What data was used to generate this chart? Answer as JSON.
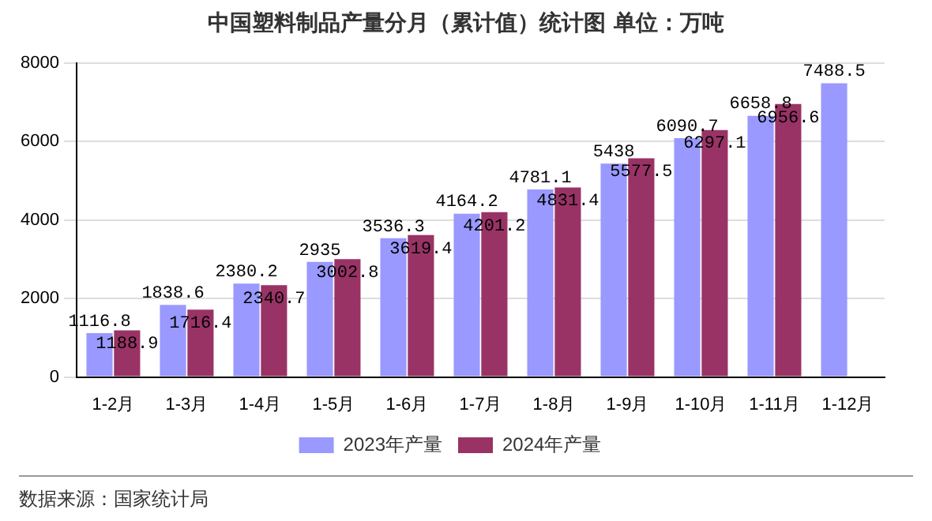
{
  "chart_data": {
    "type": "bar",
    "title": "中国塑料制品产量分月（累计值）统计图 单位：万吨",
    "categories": [
      "1-2月",
      "1-3月",
      "1-4月",
      "1-5月",
      "1-6月",
      "1-7月",
      "1-8月",
      "1-9月",
      "1-10月",
      "1-11月",
      "1-12月"
    ],
    "series": [
      {
        "name": "2023年产量",
        "color": "#9999ff",
        "values": [
          1116.8,
          1838.6,
          2380.2,
          2935,
          3536.3,
          4164.2,
          4781.1,
          5438,
          6090.7,
          6658.8,
          7488.5
        ]
      },
      {
        "name": "2024年产量",
        "color": "#993366",
        "values": [
          1188.9,
          1716.4,
          2340.7,
          3002.8,
          3619.4,
          4201.2,
          4831.4,
          5577.5,
          6297.1,
          6956.6,
          null
        ]
      }
    ],
    "ylim": [
      0,
      8000
    ],
    "yticks": [
      0,
      2000,
      4000,
      6000,
      8000
    ],
    "grid": "y",
    "legend": "bottom",
    "data_labels": true,
    "annotations": [
      "数据来源：国家统计局"
    ]
  }
}
